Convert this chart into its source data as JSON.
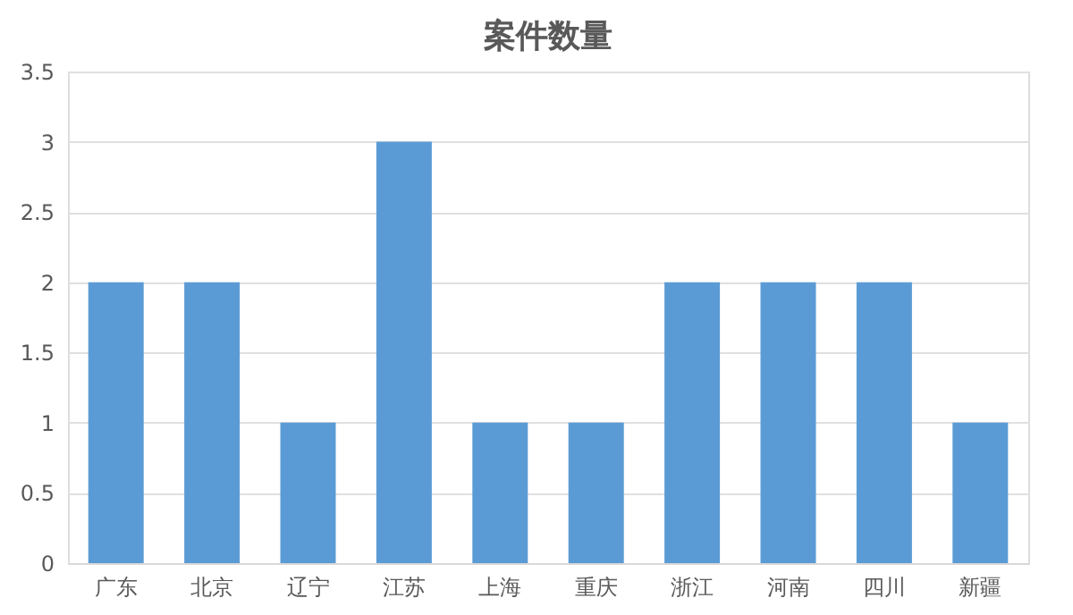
{
  "chart_data": {
    "type": "bar",
    "title": "案件数量",
    "categories": [
      "广东",
      "北京",
      "辽宁",
      "江苏",
      "上海",
      "重庆",
      "浙江",
      "河南",
      "四川",
      "新疆"
    ],
    "values": [
      2,
      2,
      1,
      3,
      1,
      1,
      2,
      2,
      2,
      1
    ],
    "color": "#5b9bd5",
    "ylim": [
      0,
      3.5
    ],
    "yticks": [
      0,
      0.5,
      1,
      1.5,
      2,
      2.5,
      3,
      3.5
    ],
    "grid": "y"
  }
}
